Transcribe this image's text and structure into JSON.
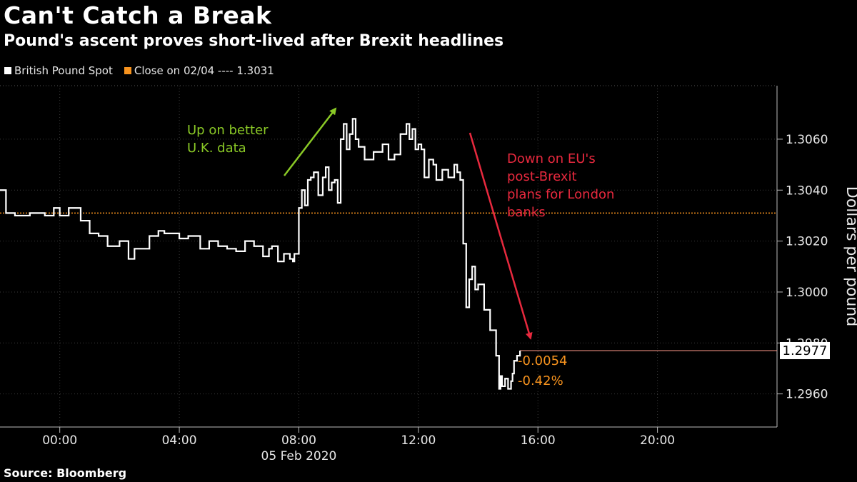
{
  "title": "Can't Catch a Break",
  "subtitle": "Pound's ascent proves short-lived after Brexit headlines",
  "legend": [
    {
      "label": "British Pound Spot",
      "color": "#ffffff"
    },
    {
      "label": "Close on 02/04 ---- 1.3031",
      "color": "#f7931e"
    }
  ],
  "source": "Source: Bloomberg",
  "chart_data": {
    "type": "line",
    "xlabel": "05 Feb 2020",
    "ylabel": "Dollars per pound",
    "x_ticks": [
      "00:00",
      "04:00",
      "08:00",
      "12:00",
      "16:00",
      "20:00"
    ],
    "y_ticks": [
      "1.2960",
      "1.2980",
      "1.3000",
      "1.3020",
      "1.3040",
      "1.3060"
    ],
    "ylim": [
      1.2947,
      1.3081
    ],
    "xlim_hours": [
      -2.0,
      24.0
    ],
    "reference_line": {
      "label": "Close on 02/04",
      "value": 1.3031
    },
    "last_value_label": "1.2977",
    "change_labels": [
      "-0.0054",
      "-0.42%"
    ],
    "series": [
      {
        "name": "British Pound Spot",
        "x_hours": [
          -2.0,
          -1.8,
          -1.5,
          -1.0,
          -0.5,
          -0.2,
          0.0,
          0.3,
          0.7,
          1.0,
          1.3,
          1.6,
          2.0,
          2.3,
          2.5,
          2.7,
          3.0,
          3.3,
          3.5,
          4.0,
          4.3,
          4.7,
          5.0,
          5.3,
          5.6,
          5.9,
          6.2,
          6.5,
          6.8,
          7.0,
          7.1,
          7.3,
          7.5,
          7.7,
          7.8,
          7.85,
          8.0,
          8.1,
          8.2,
          8.3,
          8.4,
          8.5,
          8.65,
          8.8,
          8.9,
          9.0,
          9.1,
          9.2,
          9.3,
          9.4,
          9.5,
          9.6,
          9.7,
          9.8,
          9.9,
          10.0,
          10.2,
          10.5,
          10.8,
          11.0,
          11.2,
          11.4,
          11.6,
          11.7,
          11.8,
          11.9,
          12.0,
          12.1,
          12.2,
          12.35,
          12.5,
          12.6,
          12.8,
          13.0,
          13.2,
          13.3,
          13.4,
          13.5,
          13.6,
          13.7,
          13.8,
          13.9,
          14.0,
          14.2,
          14.4,
          14.6,
          14.7,
          14.75,
          14.8,
          14.9,
          15.0,
          15.1,
          15.15,
          15.2,
          15.3,
          15.4
        ],
        "values": [
          1.304,
          1.3031,
          1.303,
          1.3031,
          1.303,
          1.3033,
          1.303,
          1.3033,
          1.3028,
          1.3023,
          1.3022,
          1.3018,
          1.302,
          1.3013,
          1.3017,
          1.3017,
          1.3022,
          1.3024,
          1.3023,
          1.3021,
          1.3022,
          1.3017,
          1.302,
          1.3018,
          1.3017,
          1.3016,
          1.302,
          1.3018,
          1.3014,
          1.3017,
          1.3018,
          1.3012,
          1.3015,
          1.3013,
          1.3012,
          1.3015,
          1.3033,
          1.304,
          1.3034,
          1.3044,
          1.3045,
          1.3047,
          1.3038,
          1.3045,
          1.3049,
          1.304,
          1.3043,
          1.3044,
          1.3035,
          1.306,
          1.3066,
          1.3056,
          1.3062,
          1.3068,
          1.306,
          1.3057,
          1.3052,
          1.3055,
          1.3058,
          1.3052,
          1.3054,
          1.3062,
          1.3066,
          1.306,
          1.3064,
          1.3056,
          1.3058,
          1.3056,
          1.3045,
          1.3052,
          1.305,
          1.3044,
          1.3048,
          1.3045,
          1.305,
          1.3047,
          1.3044,
          1.3019,
          1.2994,
          1.3005,
          1.301,
          1.3001,
          1.3003,
          1.2993,
          1.2985,
          1.2975,
          1.2962,
          1.2967,
          1.2963,
          1.2966,
          1.2962,
          1.2965,
          1.2968,
          1.2973,
          1.2975,
          1.2977
        ]
      }
    ],
    "annotations": [
      {
        "text_lines": [
          "Up on better",
          "U.K. data"
        ],
        "color": "#8ac926"
      },
      {
        "text_lines": [
          "Down on EU's",
          "post-Brexit",
          "plans for London",
          "banks"
        ],
        "color": "#e8293e"
      }
    ]
  }
}
